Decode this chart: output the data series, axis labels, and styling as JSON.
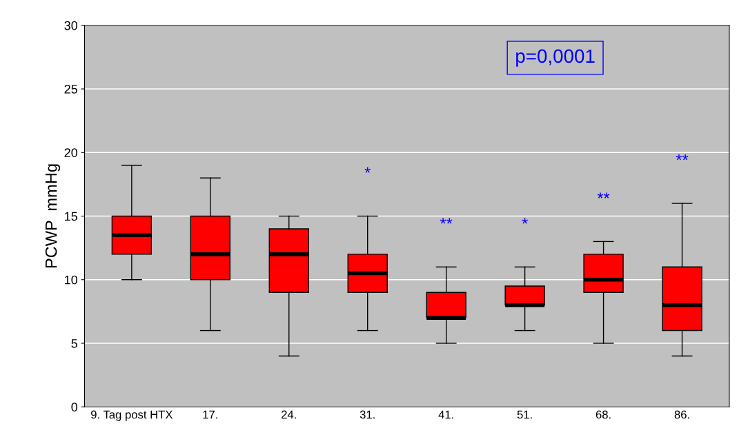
{
  "chart_data": {
    "type": "box",
    "ylabel": "PCWP  mmHg",
    "categories": [
      "9. Tag post HTX",
      "17.",
      "24.",
      "31.",
      "41.",
      "51.",
      "68.",
      "86."
    ],
    "series": [
      {
        "color": "#ff0000",
        "boxes": [
          {
            "low": 10,
            "q1": 12,
            "median": 13.5,
            "q3": 15,
            "high": 19
          },
          {
            "low": 6,
            "q1": 10,
            "median": 12,
            "q3": 15,
            "high": 18
          },
          {
            "low": 4,
            "q1": 9,
            "median": 12,
            "q3": 14,
            "high": 15
          },
          {
            "low": 6,
            "q1": 9,
            "median": 10.5,
            "q3": 12,
            "high": 15
          },
          {
            "low": 5,
            "q1": 7,
            "median": 7,
            "q3": 9,
            "high": 11
          },
          {
            "low": 6,
            "q1": 8,
            "median": 8,
            "q3": 9.5,
            "high": 11
          },
          {
            "low": 5,
            "q1": 9,
            "median": 10,
            "q3": 12,
            "high": 13
          },
          {
            "low": 4,
            "q1": 6,
            "median": 8,
            "q3": 11,
            "high": 16
          }
        ]
      }
    ],
    "ylim": [
      0,
      30
    ],
    "yticks": [
      0,
      5,
      10,
      15,
      20,
      25,
      30
    ],
    "grid": "y",
    "annotations": [
      "p=0,0001",
      "*",
      "**",
      "*",
      "**",
      "**"
    ]
  }
}
